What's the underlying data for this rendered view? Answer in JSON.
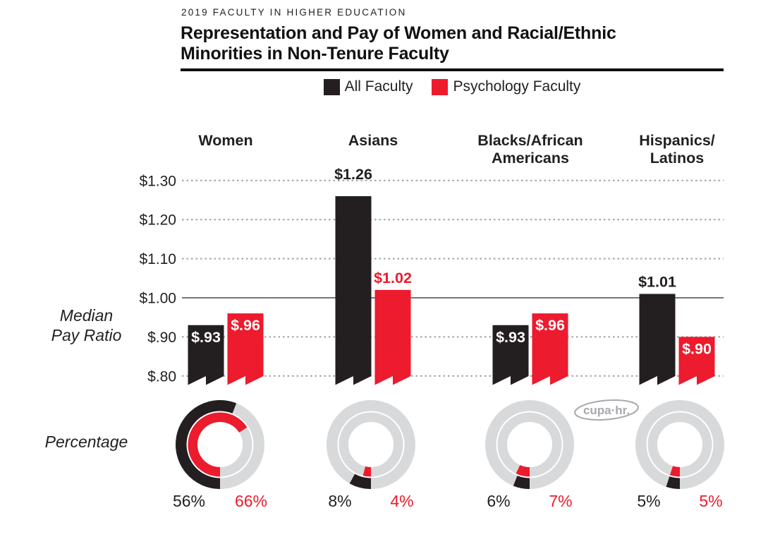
{
  "header": {
    "eyebrow": "2019 FACULTY IN HIGHER EDUCATION",
    "title_lines": [
      "Representation and Pay of Women and Racial/Ethnic",
      "Minorities in Non-Tenure Faculty"
    ]
  },
  "legend": {
    "items": [
      {
        "label": "All Faculty",
        "color": "#231F20"
      },
      {
        "label": "Psychology Faculty",
        "color": "#EC1B2D"
      }
    ]
  },
  "row_labels": {
    "pay_lines": [
      "Median",
      "Pay Ratio"
    ],
    "percentage": "Percentage"
  },
  "logo": {
    "text": "cupa·hr."
  },
  "colors": {
    "black": "#231F20",
    "red": "#EC1B2D",
    "track_gray": "#D8D9DA",
    "grid_gray": "#9EA0A3",
    "baseline_gray": "#4A4A4C",
    "logo_gray": "#A7A9AC",
    "white": "#FFFFFF"
  },
  "chart_data": [
    {
      "type": "bar",
      "title": "Representation and Pay of Women and Racial/Ethnic Minorities in Non-Tenure Faculty",
      "eyebrow": "2019 FACULTY IN HIGHER EDUCATION",
      "ylabel": "Median Pay Ratio",
      "categories": [
        "Women",
        "Asians",
        "Blacks/African Americans",
        "Hispanics/Latinos"
      ],
      "category_label_lines": [
        [
          "Women"
        ],
        [
          "Asians"
        ],
        [
          "Blacks/African",
          "Americans"
        ],
        [
          "Hispanics/",
          "Latinos"
        ]
      ],
      "series": [
        {
          "name": "All Faculty",
          "color": "#231F20",
          "values": [
            0.93,
            1.26,
            0.93,
            1.01
          ],
          "value_labels": [
            "$.93",
            "$1.26",
            "$.93",
            "$1.01"
          ],
          "label_placement": [
            "inside",
            "above",
            "inside",
            "above"
          ]
        },
        {
          "name": "Psychology Faculty",
          "color": "#EC1B2D",
          "values": [
            0.96,
            1.02,
            0.96,
            0.9
          ],
          "value_labels": [
            "$.96",
            "$1.02",
            "$.96",
            "$.90"
          ],
          "label_placement": [
            "inside",
            "above",
            "inside",
            "inside"
          ]
        }
      ],
      "yticks": [
        {
          "label": "$1.30",
          "value": 1.3,
          "style": "dotted"
        },
        {
          "label": "$1.20",
          "value": 1.2,
          "style": "dotted"
        },
        {
          "label": "$1.10",
          "value": 1.1,
          "style": "dotted"
        },
        {
          "label": "$1.00",
          "value": 1.0,
          "style": "solid"
        },
        {
          "label": "$.90",
          "value": 0.9,
          "style": "dotted"
        },
        {
          "label": "$.80",
          "value": 0.8,
          "style": "dotted"
        }
      ],
      "ylim": [
        0.8,
        1.3
      ],
      "baseline": 1.0,
      "grid": "horizontal dotted, solid at 1.00",
      "legend_position": "top",
      "bar_style": "banner ribbon with notched swallow-tail bottom"
    },
    {
      "type": "donut",
      "title": "Percentage",
      "categories": [
        "Women",
        "Asians",
        "Blacks/African Americans",
        "Hispanics/Latinos"
      ],
      "series": [
        {
          "name": "All Faculty",
          "ring": "outer",
          "color": "#231F20",
          "values": [
            56,
            8,
            6,
            5
          ],
          "value_labels": [
            "56%",
            "8%",
            "6%",
            "5%"
          ]
        },
        {
          "name": "Psychology Faculty",
          "ring": "inner",
          "color": "#EC1B2D",
          "values": [
            66,
            4,
            7,
            5
          ],
          "value_labels": [
            "66%",
            "4%",
            "7%",
            "5%"
          ]
        }
      ],
      "track_color": "#D8D9DA",
      "arc_start": "6 o'clock",
      "arc_direction": "clockwise through left side"
    }
  ]
}
